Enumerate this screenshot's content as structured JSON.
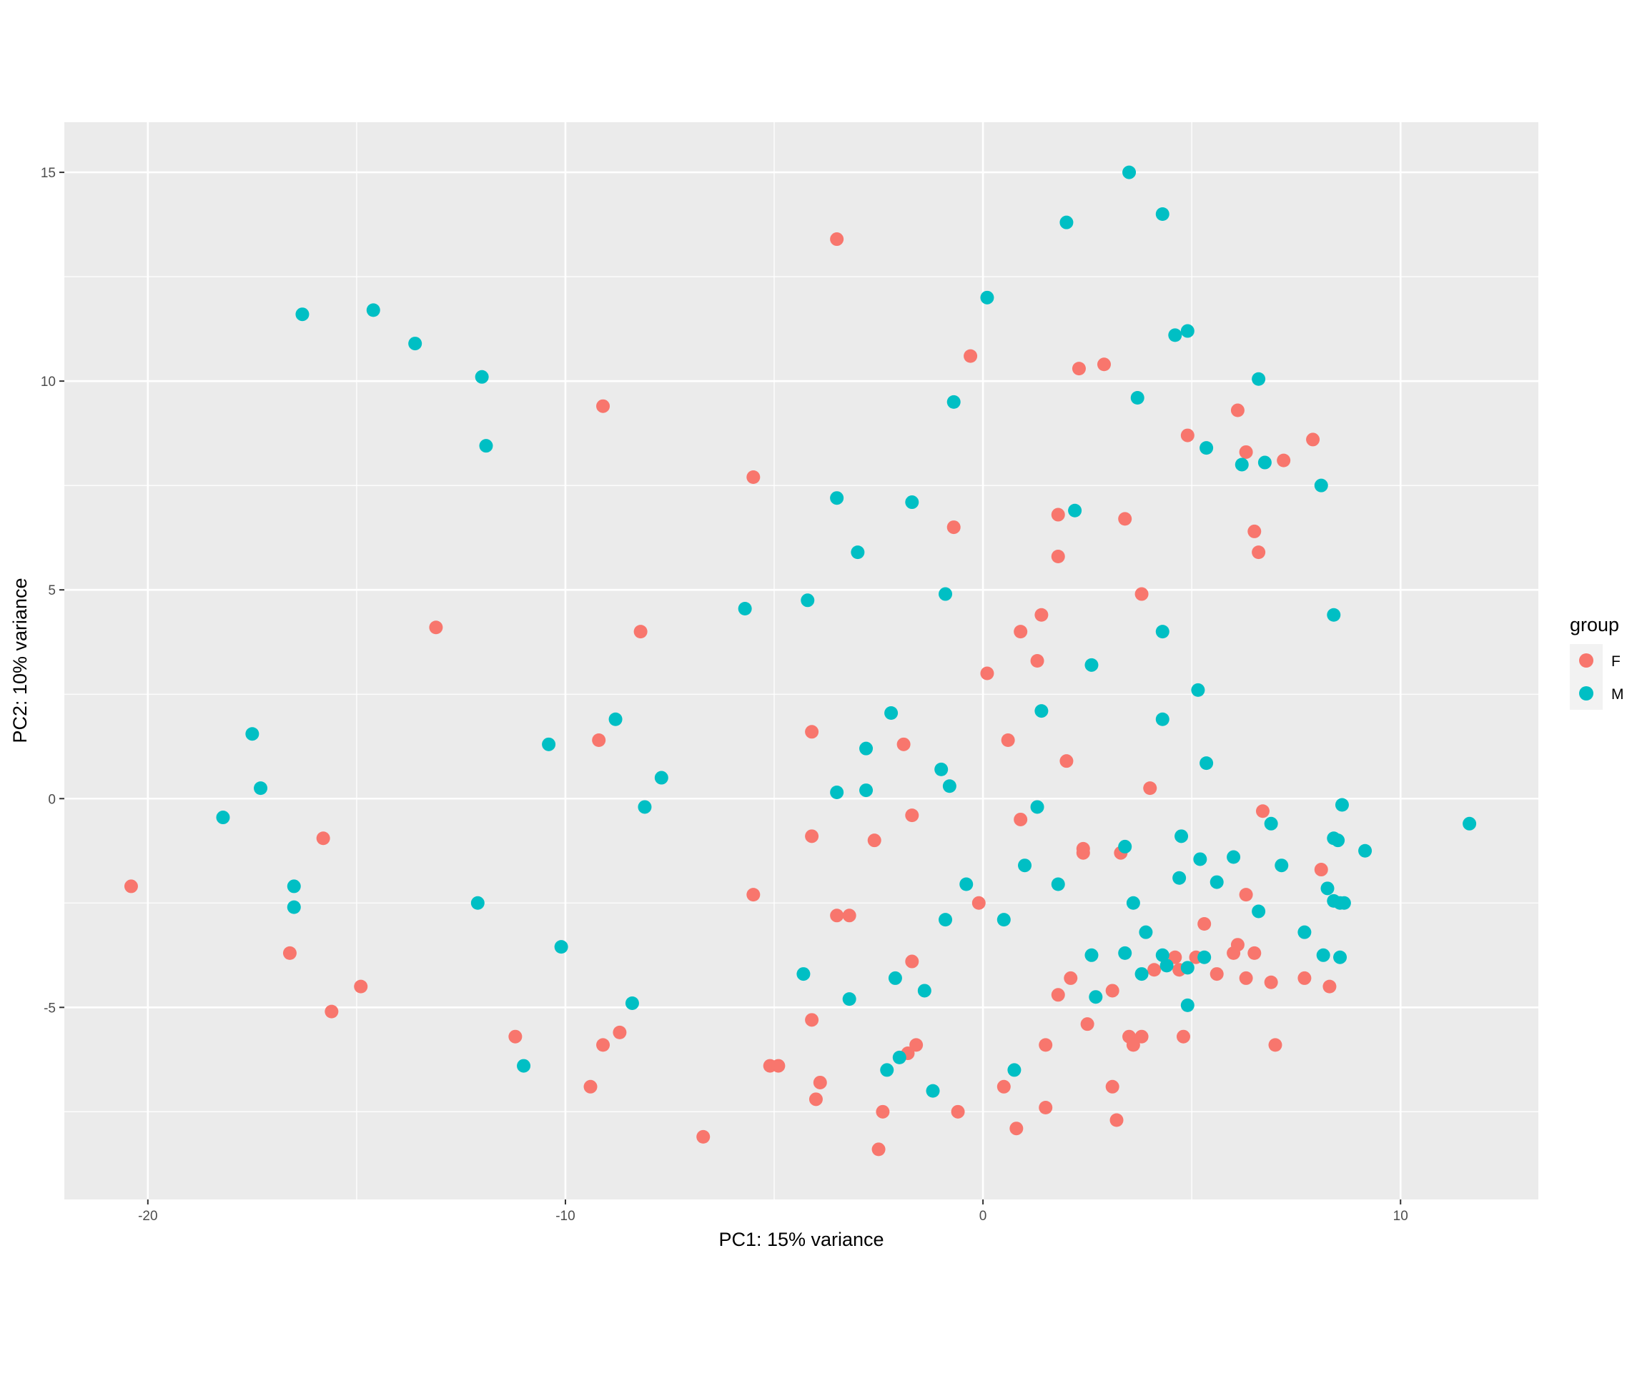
{
  "chart_data": {
    "type": "scatter",
    "title": "",
    "xlabel": "PC1: 15% variance",
    "ylabel": "PC2: 10% variance",
    "xlim": [
      -22,
      13.3
    ],
    "ylim": [
      -9.6,
      16.2
    ],
    "x_ticks": [
      -20,
      -10,
      0,
      10
    ],
    "y_ticks": [
      -5,
      0,
      5,
      10,
      15
    ],
    "x_tick_labels": [
      "-20",
      "-10",
      "0",
      "10"
    ],
    "y_tick_labels": [
      "-5",
      "0",
      "5",
      "10",
      "15"
    ],
    "grid": true,
    "legend_position": "right",
    "legend_title": "group",
    "series": [
      {
        "name": "F",
        "color": "#F8766D",
        "points": [
          [
            -20.4,
            -2.1
          ],
          [
            -15.8,
            -0.95
          ],
          [
            -16.6,
            -3.7
          ],
          [
            -14.9,
            -4.5
          ],
          [
            -15.6,
            -5.1
          ],
          [
            -13.1,
            4.1
          ],
          [
            -11.2,
            -5.7
          ],
          [
            -9.2,
            1.4
          ],
          [
            -9.1,
            9.4
          ],
          [
            -9.1,
            -5.9
          ],
          [
            -8.7,
            -5.6
          ],
          [
            -9.4,
            -6.9
          ],
          [
            -8.2,
            4.0
          ],
          [
            -6.7,
            -8.1
          ],
          [
            -5.5,
            7.7
          ],
          [
            -5.5,
            -2.3
          ],
          [
            -5.1,
            -6.4
          ],
          [
            -4.9,
            -6.4
          ],
          [
            -4.1,
            1.6
          ],
          [
            -4.1,
            -0.9
          ],
          [
            -4.1,
            -5.3
          ],
          [
            -4.0,
            -7.2
          ],
          [
            -3.9,
            -6.8
          ],
          [
            -3.5,
            13.4
          ],
          [
            -3.5,
            -2.8
          ],
          [
            -3.2,
            -2.8
          ],
          [
            -2.6,
            -1.0
          ],
          [
            -2.5,
            -8.4
          ],
          [
            -2.4,
            -7.5
          ],
          [
            -1.9,
            1.3
          ],
          [
            -1.7,
            -0.4
          ],
          [
            -1.7,
            -3.9
          ],
          [
            -1.6,
            -5.9
          ],
          [
            -1.8,
            -6.1
          ],
          [
            -0.7,
            6.5
          ],
          [
            -0.3,
            10.6
          ],
          [
            -0.1,
            -2.5
          ],
          [
            -0.6,
            -7.5
          ],
          [
            0.1,
            3.0
          ],
          [
            0.6,
            1.4
          ],
          [
            0.5,
            -6.9
          ],
          [
            0.8,
            -7.9
          ],
          [
            0.9,
            4.0
          ],
          [
            0.9,
            -0.5
          ],
          [
            1.3,
            3.3
          ],
          [
            1.4,
            4.4
          ],
          [
            1.5,
            -5.9
          ],
          [
            1.5,
            -7.4
          ],
          [
            1.8,
            6.8
          ],
          [
            1.8,
            5.8
          ],
          [
            1.8,
            -4.7
          ],
          [
            2.0,
            0.9
          ],
          [
            2.1,
            -4.3
          ],
          [
            2.3,
            10.3
          ],
          [
            2.4,
            -1.2
          ],
          [
            2.4,
            -1.3
          ],
          [
            2.5,
            -5.4
          ],
          [
            2.9,
            10.4
          ],
          [
            3.1,
            -4.6
          ],
          [
            3.1,
            -6.9
          ],
          [
            3.2,
            -7.7
          ],
          [
            3.3,
            -1.3
          ],
          [
            3.4,
            6.7
          ],
          [
            3.5,
            -5.7
          ],
          [
            3.6,
            -5.9
          ],
          [
            3.8,
            -5.7
          ],
          [
            3.8,
            4.9
          ],
          [
            4.0,
            0.25
          ],
          [
            4.1,
            -4.1
          ],
          [
            4.6,
            -3.8
          ],
          [
            4.7,
            -4.1
          ],
          [
            4.8,
            -5.7
          ],
          [
            4.9,
            8.7
          ],
          [
            5.1,
            -3.8
          ],
          [
            5.3,
            -3.0
          ],
          [
            5.6,
            -4.2
          ],
          [
            6.1,
            9.3
          ],
          [
            6.0,
            -3.7
          ],
          [
            6.1,
            -3.5
          ],
          [
            6.3,
            8.3
          ],
          [
            6.3,
            -2.3
          ],
          [
            6.3,
            -4.3
          ],
          [
            6.5,
            6.4
          ],
          [
            6.5,
            -3.7
          ],
          [
            6.6,
            5.9
          ],
          [
            6.7,
            -0.3
          ],
          [
            6.9,
            -4.4
          ],
          [
            7.0,
            -5.9
          ],
          [
            7.2,
            8.1
          ],
          [
            7.7,
            -4.3
          ],
          [
            7.9,
            8.6
          ],
          [
            8.1,
            -1.7
          ],
          [
            8.3,
            -4.5
          ]
        ]
      },
      {
        "name": "M",
        "color": "#00BFC4",
        "points": [
          [
            -18.2,
            -0.45
          ],
          [
            -17.5,
            1.55
          ],
          [
            -17.3,
            0.25
          ],
          [
            -16.5,
            -2.1
          ],
          [
            -16.5,
            -2.6
          ],
          [
            -16.3,
            11.6
          ],
          [
            -14.6,
            11.7
          ],
          [
            -13.6,
            10.9
          ],
          [
            -12.0,
            10.1
          ],
          [
            -11.9,
            8.45
          ],
          [
            -12.1,
            -2.5
          ],
          [
            -11.0,
            -6.4
          ],
          [
            -10.4,
            1.3
          ],
          [
            -10.1,
            -3.55
          ],
          [
            -8.8,
            1.9
          ],
          [
            -8.4,
            -4.9
          ],
          [
            -8.1,
            -0.2
          ],
          [
            -7.7,
            0.5
          ],
          [
            -5.7,
            4.55
          ],
          [
            -4.3,
            -4.2
          ],
          [
            -4.2,
            4.75
          ],
          [
            -3.5,
            7.2
          ],
          [
            -3.5,
            0.15
          ],
          [
            -3.2,
            -4.8
          ],
          [
            -3.0,
            5.9
          ],
          [
            -2.8,
            1.2
          ],
          [
            -2.8,
            0.2
          ],
          [
            -2.3,
            -6.5
          ],
          [
            -2.2,
            2.05
          ],
          [
            -2.1,
            -4.3
          ],
          [
            -2.0,
            -6.2
          ],
          [
            -1.7,
            7.1
          ],
          [
            -1.4,
            -4.6
          ],
          [
            -1.2,
            -7.0
          ],
          [
            -1.0,
            0.7
          ],
          [
            -0.9,
            -2.9
          ],
          [
            -0.9,
            4.9
          ],
          [
            -0.8,
            0.3
          ],
          [
            -0.7,
            9.5
          ],
          [
            -0.4,
            -2.05
          ],
          [
            0.1,
            12.0
          ],
          [
            0.5,
            -2.9
          ],
          [
            0.75,
            -6.5
          ],
          [
            1.0,
            -1.6
          ],
          [
            1.3,
            -0.2
          ],
          [
            1.4,
            2.1
          ],
          [
            1.8,
            -2.05
          ],
          [
            2.0,
            13.8
          ],
          [
            2.2,
            6.9
          ],
          [
            2.6,
            3.2
          ],
          [
            2.6,
            -3.75
          ],
          [
            2.7,
            -4.75
          ],
          [
            3.4,
            -1.15
          ],
          [
            3.4,
            -3.7
          ],
          [
            3.5,
            15.0
          ],
          [
            3.6,
            -2.5
          ],
          [
            3.7,
            9.6
          ],
          [
            3.8,
            -4.2
          ],
          [
            3.9,
            -3.2
          ],
          [
            4.3,
            14.0
          ],
          [
            4.3,
            4.0
          ],
          [
            4.3,
            1.9
          ],
          [
            4.3,
            -3.75
          ],
          [
            4.4,
            -4.0
          ],
          [
            4.6,
            11.1
          ],
          [
            4.7,
            -1.9
          ],
          [
            4.75,
            -0.9
          ],
          [
            4.9,
            11.2
          ],
          [
            4.9,
            -4.05
          ],
          [
            4.9,
            -4.95
          ],
          [
            5.15,
            2.6
          ],
          [
            5.2,
            -1.45
          ],
          [
            5.3,
            -3.8
          ],
          [
            5.35,
            8.4
          ],
          [
            5.35,
            0.85
          ],
          [
            5.6,
            -2.0
          ],
          [
            6.0,
            -1.4
          ],
          [
            6.2,
            8.0
          ],
          [
            6.6,
            10.05
          ],
          [
            6.6,
            -2.7
          ],
          [
            6.75,
            8.05
          ],
          [
            6.9,
            -0.6
          ],
          [
            7.15,
            -1.6
          ],
          [
            7.7,
            -3.2
          ],
          [
            8.1,
            7.5
          ],
          [
            8.15,
            -3.75
          ],
          [
            8.25,
            -2.15
          ],
          [
            8.4,
            4.4
          ],
          [
            8.4,
            -0.95
          ],
          [
            8.4,
            -2.45
          ],
          [
            8.5,
            -1.0
          ],
          [
            8.55,
            -2.5
          ],
          [
            8.55,
            -3.8
          ],
          [
            8.6,
            -0.15
          ],
          [
            8.65,
            -2.5
          ],
          [
            9.15,
            -1.25
          ],
          [
            11.65,
            -0.6
          ]
        ]
      }
    ]
  }
}
